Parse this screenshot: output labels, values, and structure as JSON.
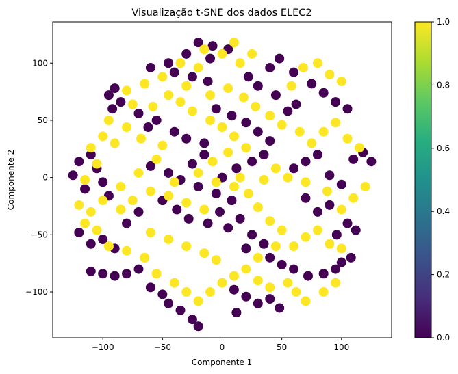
{
  "chart_data": {
    "type": "scatter",
    "title": "Visualização t-SNE dos dados ELEC2",
    "xlabel": "Componente 1",
    "ylabel": "Componente 2",
    "xlim": [
      -142,
      142
    ],
    "ylim": [
      -140,
      136
    ],
    "xticks": [
      -100,
      -50,
      0,
      50,
      100
    ],
    "yticks": [
      -100,
      -50,
      0,
      50,
      100
    ],
    "xtick_labels": [
      "−100",
      "−50",
      "0",
      "50",
      "100"
    ],
    "ytick_labels": [
      "−100",
      "−50",
      "0",
      "50",
      "100"
    ],
    "grid": false,
    "colorbar": {
      "colormap": "viridis",
      "range": [
        0.0,
        1.0
      ],
      "ticks": [
        0.0,
        0.2,
        0.4,
        0.6,
        0.8,
        1.0
      ],
      "tick_labels": [
        "0.0",
        "0.2",
        "0.4",
        "0.6",
        "0.8",
        "1.0"
      ]
    },
    "class_colors": {
      "0": "#440154",
      "1": "#fde725"
    },
    "series": [
      {
        "label_value": 0,
        "points": [
          [
            -20,
            118
          ],
          [
            -8,
            115
          ],
          [
            5,
            112
          ],
          [
            -30,
            108
          ],
          [
            -10,
            104
          ],
          [
            -45,
            100
          ],
          [
            -60,
            96
          ],
          [
            -40,
            92
          ],
          [
            -25,
            88
          ],
          [
            -12,
            84
          ],
          [
            -90,
            78
          ],
          [
            -95,
            72
          ],
          [
            -85,
            66
          ],
          [
            -92,
            60
          ],
          [
            -70,
            56
          ],
          [
            -55,
            50
          ],
          [
            -62,
            44
          ],
          [
            -40,
            40
          ],
          [
            -30,
            34
          ],
          [
            -15,
            30
          ],
          [
            -110,
            20
          ],
          [
            -120,
            14
          ],
          [
            -105,
            8
          ],
          [
            -125,
            2
          ],
          [
            -100,
            -4
          ],
          [
            -115,
            -10
          ],
          [
            -95,
            -16
          ],
          [
            -60,
            10
          ],
          [
            -45,
            4
          ],
          [
            -35,
            -2
          ],
          [
            -20,
            -8
          ],
          [
            -5,
            -14
          ],
          [
            8,
            -20
          ],
          [
            -2,
            -30
          ],
          [
            15,
            -36
          ],
          [
            5,
            -44
          ],
          [
            -12,
            -40
          ],
          [
            25,
            -50
          ],
          [
            35,
            -58
          ],
          [
            20,
            -62
          ],
          [
            40,
            -70
          ],
          [
            50,
            -76
          ],
          [
            60,
            -80
          ],
          [
            72,
            -86
          ],
          [
            85,
            -84
          ],
          [
            95,
            -80
          ],
          [
            100,
            -74
          ],
          [
            108,
            -70
          ],
          [
            -70,
            -80
          ],
          [
            -80,
            -84
          ],
          [
            -90,
            -86
          ],
          [
            -100,
            -84
          ],
          [
            -110,
            -82
          ],
          [
            -60,
            -96
          ],
          [
            -50,
            -102
          ],
          [
            -45,
            -110
          ],
          [
            -35,
            -116
          ],
          [
            -25,
            -124
          ],
          [
            -20,
            -130
          ],
          [
            10,
            -98
          ],
          [
            20,
            -104
          ],
          [
            30,
            -110
          ],
          [
            12,
            -118
          ],
          [
            40,
            -106
          ],
          [
            48,
            -114
          ],
          [
            60,
            8
          ],
          [
            70,
            14
          ],
          [
            80,
            20
          ],
          [
            90,
            2
          ],
          [
            100,
            -6
          ],
          [
            110,
            16
          ],
          [
            118,
            22
          ],
          [
            125,
            14
          ],
          [
            105,
            -40
          ],
          [
            112,
            -46
          ],
          [
            96,
            -50
          ],
          [
            80,
            -30
          ],
          [
            90,
            -24
          ],
          [
            70,
            -18
          ],
          [
            55,
            58
          ],
          [
            62,
            64
          ],
          [
            45,
            72
          ],
          [
            30,
            80
          ],
          [
            22,
            88
          ],
          [
            40,
            96
          ],
          [
            48,
            104
          ],
          [
            60,
            92
          ],
          [
            75,
            82
          ],
          [
            85,
            74
          ],
          [
            95,
            66
          ],
          [
            105,
            60
          ],
          [
            -5,
            60
          ],
          [
            8,
            54
          ],
          [
            20,
            48
          ],
          [
            30,
            40
          ],
          [
            40,
            32
          ],
          [
            -50,
            -20
          ],
          [
            -38,
            -28
          ],
          [
            -28,
            -36
          ],
          [
            -70,
            -30
          ],
          [
            -80,
            -40
          ],
          [
            -100,
            -54
          ],
          [
            -90,
            -62
          ],
          [
            -110,
            -58
          ],
          [
            -120,
            -48
          ],
          [
            0,
            0
          ],
          [
            12,
            8
          ],
          [
            25,
            14
          ],
          [
            35,
            20
          ],
          [
            -15,
            20
          ],
          [
            -25,
            12
          ]
        ]
      },
      {
        "label_value": 1,
        "points": [
          [
            -15,
            112
          ],
          [
            0,
            108
          ],
          [
            10,
            118
          ],
          [
            -35,
            100
          ],
          [
            -20,
            96
          ],
          [
            -50,
            88
          ],
          [
            -65,
            82
          ],
          [
            -80,
            76
          ],
          [
            -75,
            64
          ],
          [
            -95,
            50
          ],
          [
            -80,
            44
          ],
          [
            -100,
            36
          ],
          [
            -110,
            26
          ],
          [
            -90,
            30
          ],
          [
            -68,
            34
          ],
          [
            -50,
            28
          ],
          [
            -55,
            16
          ],
          [
            -70,
            4
          ],
          [
            -85,
            -8
          ],
          [
            -100,
            -20
          ],
          [
            -110,
            -30
          ],
          [
            -120,
            -24
          ],
          [
            -115,
            -2
          ],
          [
            -105,
            12
          ],
          [
            -60,
            -12
          ],
          [
            -45,
            -16
          ],
          [
            -30,
            -22
          ],
          [
            -15,
            -28
          ],
          [
            -5,
            -4
          ],
          [
            10,
            -8
          ],
          [
            22,
            -14
          ],
          [
            30,
            -26
          ],
          [
            40,
            -38
          ],
          [
            50,
            -46
          ],
          [
            45,
            -60
          ],
          [
            30,
            -70
          ],
          [
            20,
            -80
          ],
          [
            10,
            -86
          ],
          [
            0,
            -92
          ],
          [
            -10,
            -100
          ],
          [
            -20,
            -108
          ],
          [
            -30,
            -100
          ],
          [
            -40,
            -92
          ],
          [
            -55,
            -84
          ],
          [
            -65,
            -70
          ],
          [
            -80,
            -64
          ],
          [
            -95,
            -60
          ],
          [
            -105,
            -46
          ],
          [
            -115,
            -40
          ],
          [
            60,
            -60
          ],
          [
            70,
            -52
          ],
          [
            80,
            -46
          ],
          [
            90,
            -58
          ],
          [
            100,
            -62
          ],
          [
            62,
            -100
          ],
          [
            70,
            -108
          ],
          [
            55,
            -92
          ],
          [
            40,
            -96
          ],
          [
            65,
            40
          ],
          [
            75,
            30
          ],
          [
            85,
            40
          ],
          [
            95,
            48
          ],
          [
            105,
            34
          ],
          [
            115,
            26
          ],
          [
            120,
            -8
          ],
          [
            110,
            -18
          ],
          [
            100,
            -28
          ],
          [
            88,
            -12
          ],
          [
            70,
            -4
          ],
          [
            55,
            0
          ],
          [
            45,
            8
          ],
          [
            35,
            -2
          ],
          [
            20,
            26
          ],
          [
            10,
            36
          ],
          [
            0,
            44
          ],
          [
            -10,
            50
          ],
          [
            -25,
            58
          ],
          [
            -35,
            66
          ],
          [
            -10,
            72
          ],
          [
            5,
            78
          ],
          [
            18,
            70
          ],
          [
            28,
            62
          ],
          [
            40,
            54
          ],
          [
            50,
            46
          ],
          [
            58,
            80
          ],
          [
            68,
            96
          ],
          [
            80,
            100
          ],
          [
            90,
            90
          ],
          [
            100,
            84
          ],
          [
            15,
            100
          ],
          [
            25,
            108
          ],
          [
            -45,
            72
          ],
          [
            -30,
            80
          ],
          [
            -58,
            62
          ],
          [
            -40,
            -4
          ],
          [
            -20,
            4
          ],
          [
            -8,
            14
          ],
          [
            5,
            22
          ],
          [
            15,
            0
          ],
          [
            -75,
            -20
          ],
          [
            -85,
            -28
          ],
          [
            -60,
            -48
          ],
          [
            -45,
            -54
          ],
          [
            -30,
            -60
          ],
          [
            -15,
            -66
          ],
          [
            -5,
            -72
          ],
          [
            30,
            -90
          ],
          [
            85,
            -100
          ],
          [
            95,
            -92
          ]
        ]
      }
    ]
  }
}
